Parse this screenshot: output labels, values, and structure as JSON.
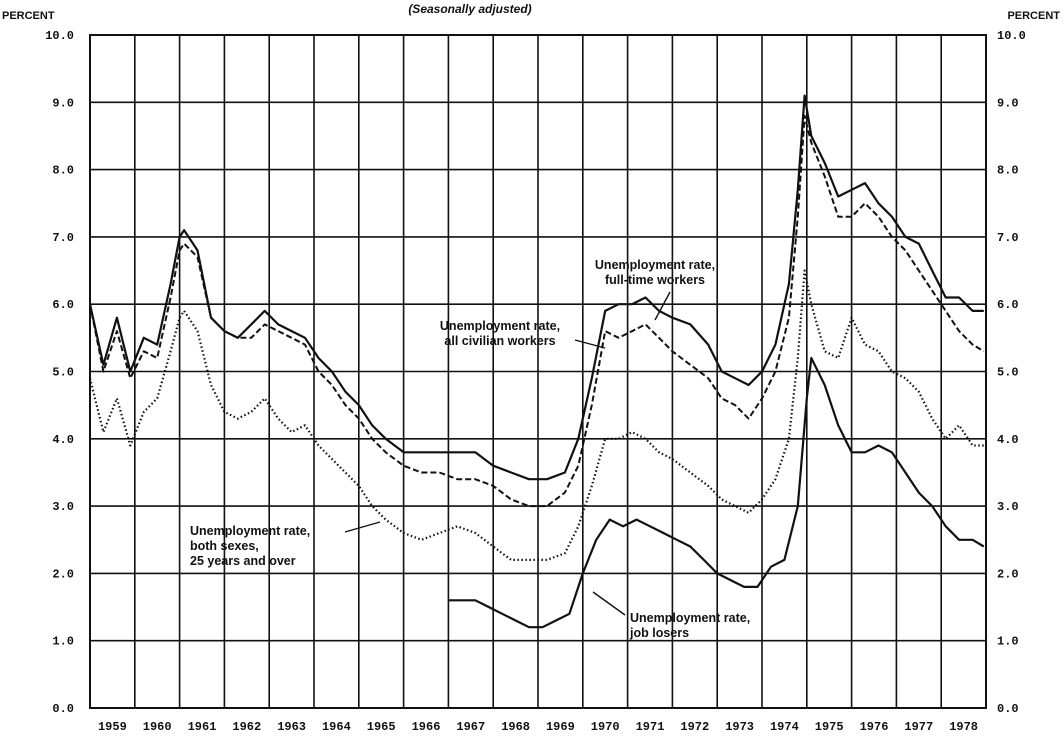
{
  "chart_data": {
    "type": "line",
    "subtitle": "(Seasonally adjusted)",
    "y_unit_left": "PERCENT",
    "y_unit_right": "PERCENT",
    "ylim": [
      0,
      10
    ],
    "yticks": [
      "0.0",
      "1.0",
      "2.0",
      "3.0",
      "4.0",
      "5.0",
      "6.0",
      "7.0",
      "8.0",
      "9.0",
      "10.0"
    ],
    "xlim": [
      1959,
      1979
    ],
    "xticks": [
      "1959",
      "1960",
      "1961",
      "1962",
      "1963",
      "1964",
      "1965",
      "1966",
      "1967",
      "1968",
      "1969",
      "1970",
      "1971",
      "1972",
      "1973",
      "1974",
      "1975",
      "1976",
      "1977",
      "1978"
    ],
    "grid": true,
    "series": [
      {
        "id": "fulltime",
        "label_lines": [
          "Unemployment rate,",
          "full-time workers"
        ],
        "style": "solid",
        "x": [
          1959.0,
          1959.3,
          1959.6,
          1959.9,
          1960.2,
          1960.5,
          1960.8,
          1961.0,
          1961.1,
          1961.4,
          1961.7,
          1962.0,
          1962.3,
          1962.6,
          1962.9,
          1963.2,
          1963.5,
          1963.8,
          1964.1,
          1964.4,
          1964.7,
          1965.0,
          1965.3,
          1965.6,
          1966.0,
          1966.4,
          1966.8,
          1967.2,
          1967.6,
          1968.0,
          1968.4,
          1968.8,
          1969.2,
          1969.6,
          1969.9,
          1970.2,
          1970.5,
          1970.8,
          1971.1,
          1971.4,
          1971.7,
          1972.0,
          1972.4,
          1972.8,
          1973.1,
          1973.4,
          1973.7,
          1974.0,
          1974.3,
          1974.6,
          1974.8,
          1974.95,
          1975.1,
          1975.4,
          1975.7,
          1976.0,
          1976.3,
          1976.6,
          1976.9,
          1977.2,
          1977.5,
          1977.8,
          1978.1,
          1978.4,
          1978.7,
          1978.95
        ],
        "y": [
          6.0,
          5.1,
          5.8,
          5.0,
          5.5,
          5.4,
          6.3,
          7.0,
          7.1,
          6.8,
          5.8,
          5.6,
          5.5,
          5.7,
          5.9,
          5.7,
          5.6,
          5.5,
          5.2,
          5.0,
          4.7,
          4.5,
          4.2,
          4.0,
          3.8,
          3.8,
          3.8,
          3.8,
          3.8,
          3.6,
          3.5,
          3.4,
          3.4,
          3.5,
          4.0,
          4.9,
          5.9,
          6.0,
          6.0,
          6.1,
          5.9,
          5.8,
          5.7,
          5.4,
          5.0,
          4.9,
          4.8,
          5.0,
          5.4,
          6.3,
          7.7,
          9.1,
          8.5,
          8.1,
          7.6,
          7.7,
          7.8,
          7.5,
          7.3,
          7.0,
          6.9,
          6.5,
          6.1,
          6.1,
          5.9,
          5.9
        ]
      },
      {
        "id": "all_civilian",
        "label_lines": [
          "Unemployment rate,",
          "all civilian workers"
        ],
        "style": "dashed",
        "x": [
          1959.0,
          1959.3,
          1959.6,
          1959.9,
          1960.2,
          1960.5,
          1960.8,
          1961.0,
          1961.1,
          1961.4,
          1961.7,
          1962.0,
          1962.3,
          1962.6,
          1962.9,
          1963.2,
          1963.5,
          1963.8,
          1964.1,
          1964.4,
          1964.7,
          1965.0,
          1965.3,
          1965.6,
          1966.0,
          1966.4,
          1966.8,
          1967.2,
          1967.6,
          1968.0,
          1968.4,
          1968.8,
          1969.2,
          1969.6,
          1969.9,
          1970.2,
          1970.5,
          1970.8,
          1971.1,
          1971.4,
          1971.7,
          1972.0,
          1972.4,
          1972.8,
          1973.1,
          1973.4,
          1973.7,
          1974.0,
          1974.3,
          1974.6,
          1974.8,
          1974.95,
          1975.1,
          1975.4,
          1975.7,
          1976.0,
          1976.3,
          1976.6,
          1976.9,
          1977.2,
          1977.5,
          1977.8,
          1978.1,
          1978.4,
          1978.7,
          1978.95
        ],
        "y": [
          6.0,
          5.0,
          5.6,
          4.9,
          5.3,
          5.2,
          6.1,
          6.8,
          6.9,
          6.7,
          5.8,
          5.6,
          5.5,
          5.5,
          5.7,
          5.6,
          5.5,
          5.4,
          5.0,
          4.8,
          4.5,
          4.3,
          4.0,
          3.8,
          3.6,
          3.5,
          3.5,
          3.4,
          3.4,
          3.3,
          3.1,
          3.0,
          3.0,
          3.2,
          3.6,
          4.5,
          5.6,
          5.5,
          5.6,
          5.7,
          5.5,
          5.3,
          5.1,
          4.9,
          4.6,
          4.5,
          4.3,
          4.6,
          5.0,
          5.8,
          7.3,
          8.8,
          8.4,
          7.9,
          7.3,
          7.3,
          7.5,
          7.3,
          7.0,
          6.8,
          6.5,
          6.2,
          5.9,
          5.6,
          5.4,
          5.3
        ]
      },
      {
        "id": "both_sexes_25",
        "label_lines": [
          "Unemployment rate,",
          "both sexes,",
          "25 years and over"
        ],
        "style": "dotted",
        "x": [
          1959.0,
          1959.3,
          1959.6,
          1959.9,
          1960.2,
          1960.5,
          1960.8,
          1961.0,
          1961.1,
          1961.4,
          1961.7,
          1962.0,
          1962.3,
          1962.6,
          1962.9,
          1963.2,
          1963.5,
          1963.8,
          1964.1,
          1964.4,
          1964.7,
          1965.0,
          1965.3,
          1965.6,
          1966.0,
          1966.4,
          1966.8,
          1967.2,
          1967.6,
          1968.0,
          1968.4,
          1968.8,
          1969.2,
          1969.6,
          1969.9,
          1970.2,
          1970.5,
          1970.8,
          1971.1,
          1971.4,
          1971.7,
          1972.0,
          1972.4,
          1972.8,
          1973.1,
          1973.4,
          1973.7,
          1974.0,
          1974.3,
          1974.6,
          1974.8,
          1974.95,
          1975.1,
          1975.4,
          1975.7,
          1976.0,
          1976.3,
          1976.6,
          1976.9,
          1977.2,
          1977.5,
          1977.8,
          1978.1,
          1978.4,
          1978.7,
          1978.95
        ],
        "y": [
          4.9,
          4.1,
          4.6,
          3.9,
          4.4,
          4.6,
          5.3,
          5.8,
          5.9,
          5.6,
          4.8,
          4.4,
          4.3,
          4.4,
          4.6,
          4.3,
          4.1,
          4.2,
          3.9,
          3.7,
          3.5,
          3.3,
          3.0,
          2.8,
          2.6,
          2.5,
          2.6,
          2.7,
          2.6,
          2.4,
          2.2,
          2.2,
          2.2,
          2.3,
          2.7,
          3.3,
          4.0,
          4.0,
          4.1,
          4.0,
          3.8,
          3.7,
          3.5,
          3.3,
          3.1,
          3.0,
          2.9,
          3.1,
          3.4,
          4.0,
          5.2,
          6.5,
          6.0,
          5.3,
          5.2,
          5.8,
          5.4,
          5.3,
          5.0,
          4.9,
          4.7,
          4.3,
          4.0,
          4.2,
          3.9,
          3.9
        ]
      },
      {
        "id": "job_losers",
        "label_lines": [
          "Unemployment rate,",
          "job losers"
        ],
        "style": "solid",
        "x": [
          1967.0,
          1967.3,
          1967.6,
          1967.9,
          1968.2,
          1968.5,
          1968.8,
          1969.1,
          1969.4,
          1969.7,
          1970.0,
          1970.3,
          1970.6,
          1970.9,
          1971.2,
          1971.5,
          1971.8,
          1972.1,
          1972.4,
          1972.7,
          1973.0,
          1973.3,
          1973.6,
          1973.9,
          1974.2,
          1974.5,
          1974.8,
          1975.0,
          1975.1,
          1975.4,
          1975.7,
          1976.0,
          1976.3,
          1976.6,
          1976.9,
          1977.2,
          1977.5,
          1977.8,
          1978.1,
          1978.4,
          1978.7,
          1978.95
        ],
        "y": [
          1.6,
          1.6,
          1.6,
          1.5,
          1.4,
          1.3,
          1.2,
          1.2,
          1.3,
          1.4,
          2.0,
          2.5,
          2.8,
          2.7,
          2.8,
          2.7,
          2.6,
          2.5,
          2.4,
          2.2,
          2.0,
          1.9,
          1.8,
          1.8,
          2.1,
          2.2,
          3.0,
          4.6,
          5.2,
          4.8,
          4.2,
          3.8,
          3.8,
          3.9,
          3.8,
          3.5,
          3.2,
          3.0,
          2.7,
          2.5,
          2.5,
          2.4
        ]
      }
    ]
  }
}
